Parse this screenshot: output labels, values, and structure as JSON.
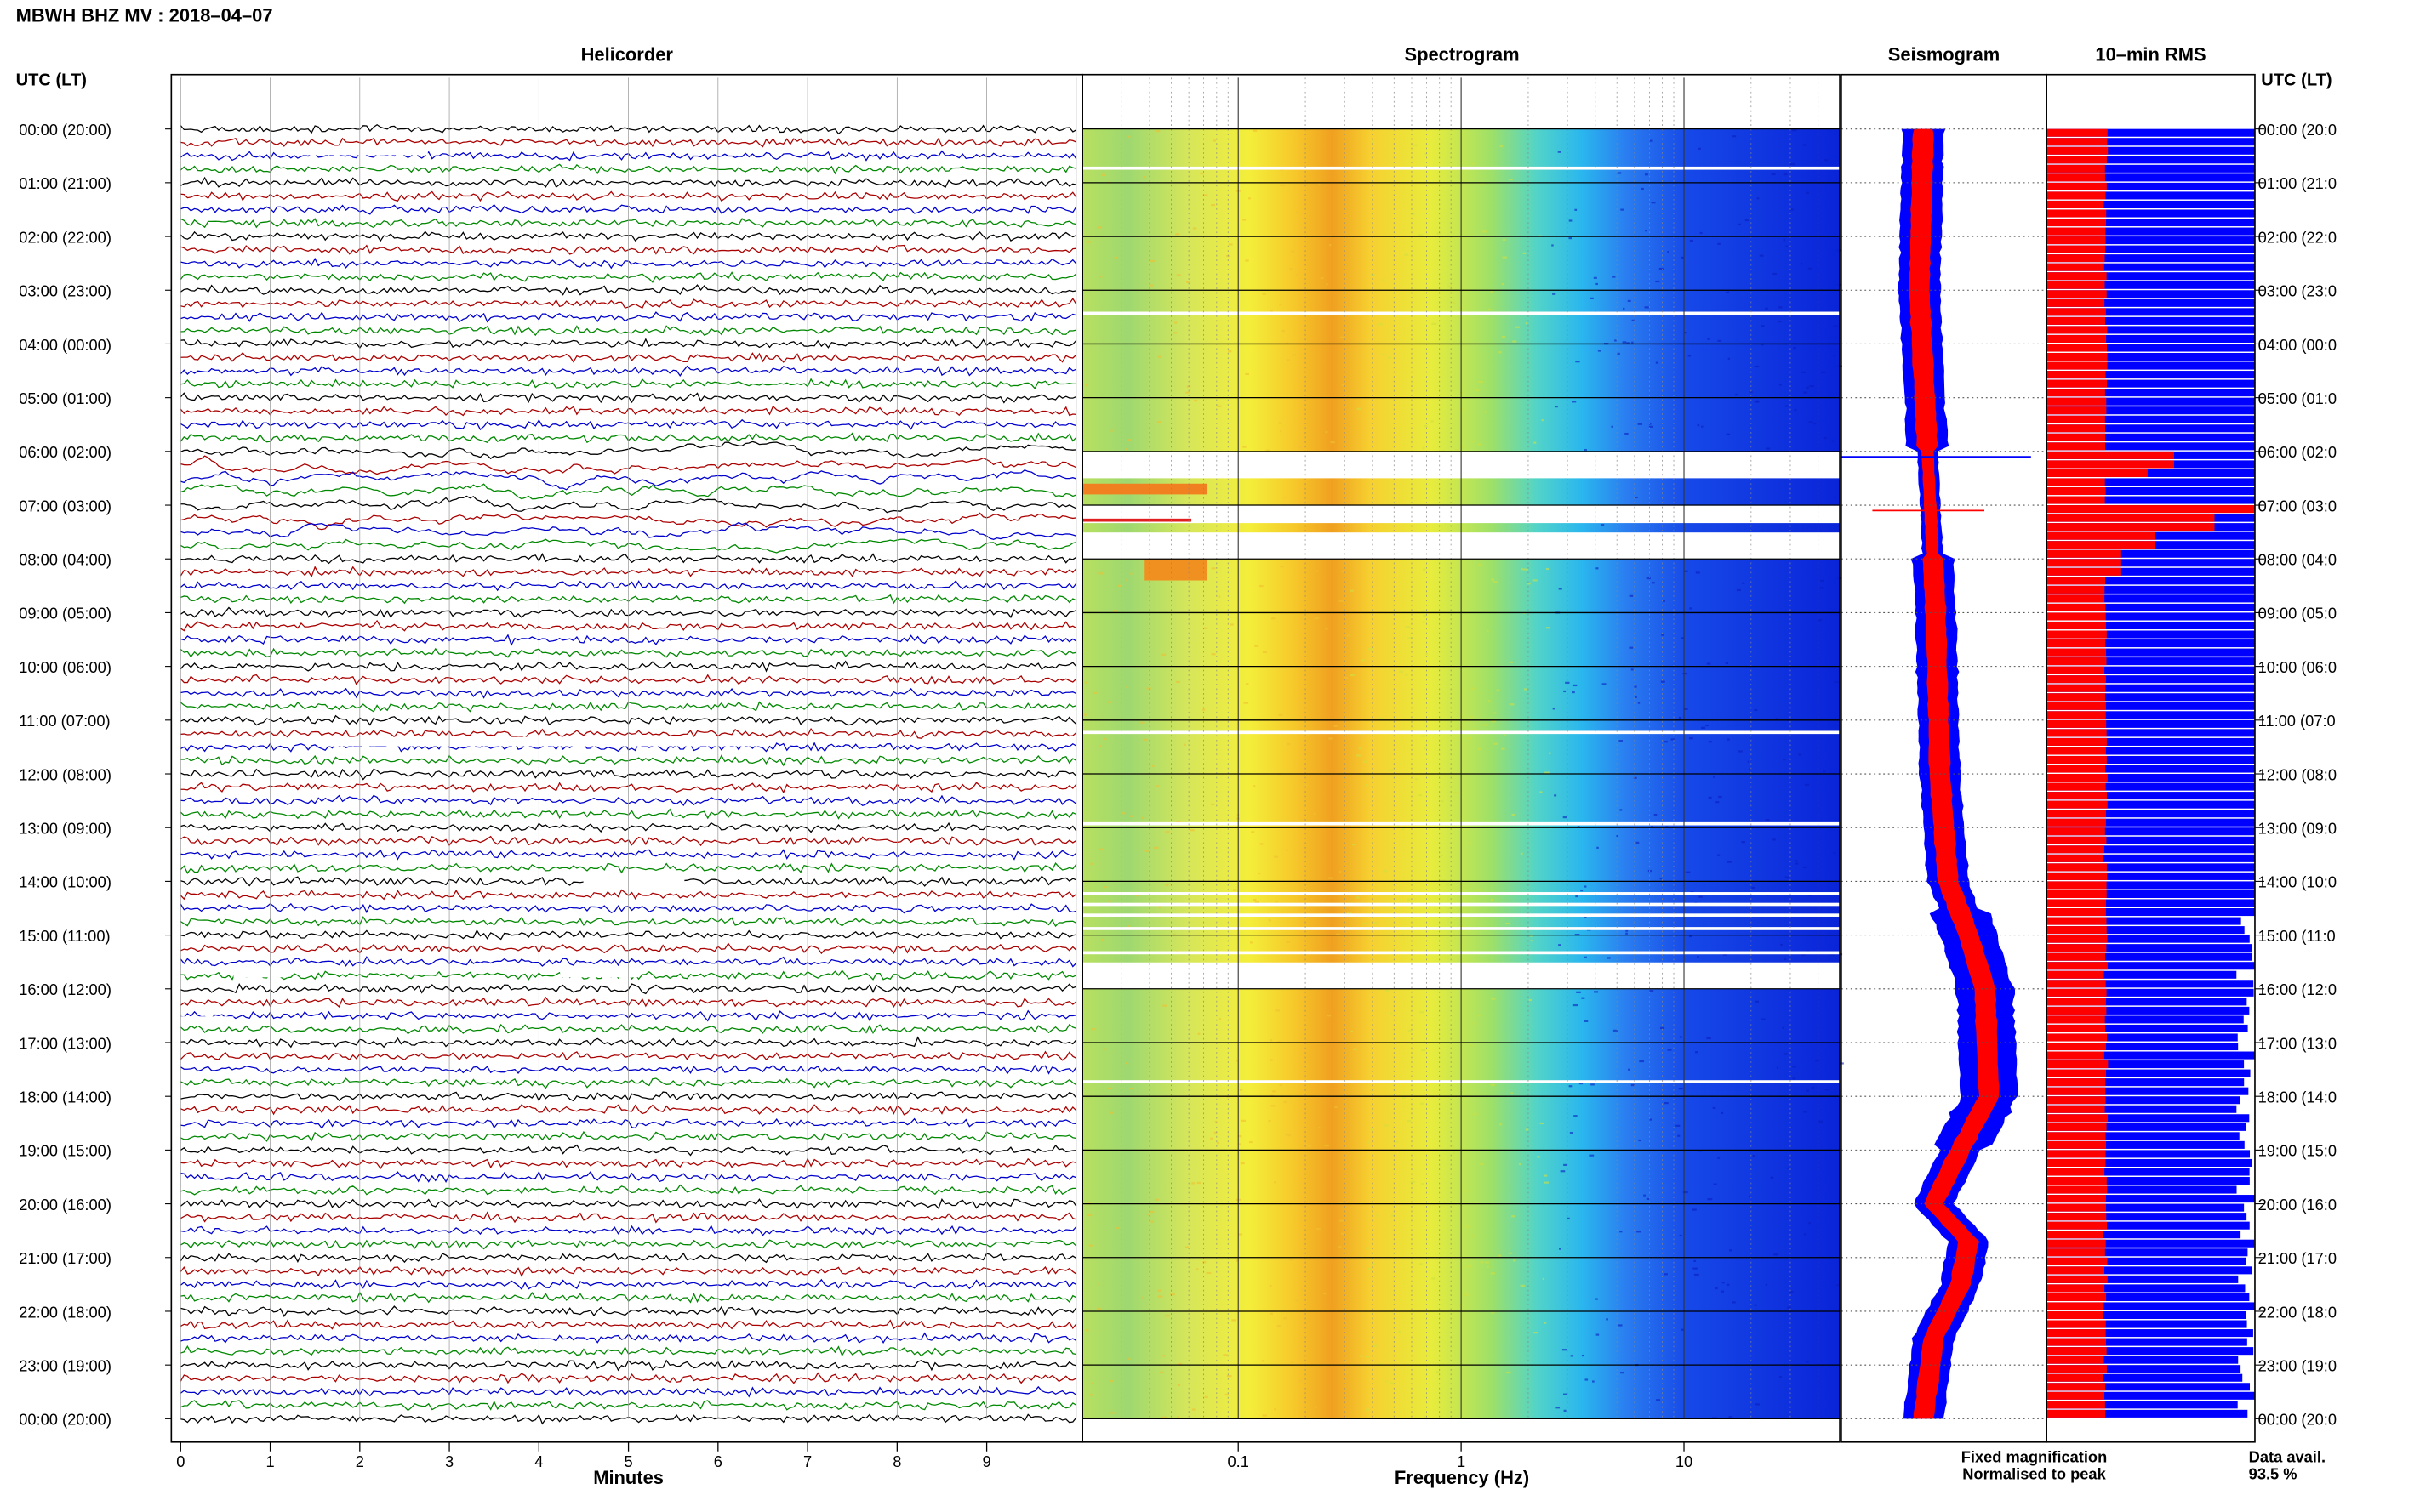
{
  "chart_data": {
    "type": "heatmap",
    "title": "MBWH BHZ MV : 2018–04–07",
    "panels": [
      "Helicorder",
      "Spectrogram",
      "Seismogram",
      "10–min RMS"
    ],
    "ylabel": "UTC (LT)",
    "time_ticks_utc": [
      "00:00",
      "01:00",
      "02:00",
      "03:00",
      "04:00",
      "05:00",
      "06:00",
      "07:00",
      "08:00",
      "09:00",
      "10:00",
      "11:00",
      "12:00",
      "13:00",
      "14:00",
      "15:00",
      "16:00",
      "17:00",
      "18:00",
      "19:00",
      "20:00",
      "21:00",
      "22:00",
      "23:00",
      "00:00"
    ],
    "time_ticks_lt": [
      "20:00",
      "21:00",
      "22:00",
      "23:00",
      "00:00",
      "01:00",
      "02:00",
      "03:00",
      "04:00",
      "05:00",
      "06:00",
      "07:00",
      "08:00",
      "09:00",
      "10:00",
      "11:00",
      "12:00",
      "13:00",
      "14:00",
      "15:00",
      "16:00",
      "17:00",
      "18:00",
      "19:00",
      "20:00"
    ],
    "left_labels": [
      "00:00 (20:00)",
      "01:00 (21:00)",
      "02:00 (22:00)",
      "03:00 (23:00)",
      "04:00 (00:00)",
      "05:00 (01:00)",
      "06:00 (02:00)",
      "07:00 (03:00)",
      "08:00 (04:00)",
      "09:00 (05:00)",
      "10:00 (06:00)",
      "11:00 (07:00)",
      "12:00 (08:00)",
      "13:00 (09:00)",
      "14:00 (10:00)",
      "15:00 (11:00)",
      "16:00 (12:00)",
      "17:00 (13:00)",
      "18:00 (14:00)",
      "19:00 (15:00)",
      "20:00 (16:00)",
      "21:00 (17:00)",
      "22:00 (18:00)",
      "23:00 (19:00)",
      "00:00 (20:00)"
    ],
    "right_labels": [
      "00:00 (20:0",
      "01:00 (21:0",
      "02:00 (22:0",
      "03:00 (23:0",
      "04:00 (00:0",
      "05:00 (01:0",
      "06:00 (02:0",
      "07:00 (03:0",
      "08:00 (04:0",
      "09:00 (05:0",
      "10:00 (06:0",
      "11:00 (07:0",
      "12:00 (08:0",
      "13:00 (09:0",
      "14:00 (10:0",
      "15:00 (11:0",
      "16:00 (12:0",
      "17:00 (13:0",
      "18:00 (14:0",
      "19:00 (15:0",
      "20:00 (16:0",
      "21:00 (17:0",
      "22:00 (18:0",
      "23:00 (19:0",
      "00:00 (20:0"
    ],
    "helicorder": {
      "xlabel": "Minutes",
      "x_ticks": [
        "0",
        "1",
        "2",
        "3",
        "4",
        "5",
        "6",
        "7",
        "8",
        "9"
      ],
      "xlim": [
        0,
        10
      ],
      "trace_colors": [
        "#000000",
        "#aa0000",
        "#0000cc",
        "#008800"
      ]
    },
    "spectrogram": {
      "xlabel": "Frequency (Hz)",
      "x_scale": "log",
      "xlim": [
        0.02,
        50
      ],
      "x_ticks": [
        "0.1",
        "1",
        "10"
      ],
      "x_tick_values": [
        0.1,
        1,
        10
      ],
      "data_gaps_utc": [
        [
          6.0,
          6.5
        ],
        [
          6.85,
          7.3
        ],
        [
          7.35,
          8.0
        ],
        [
          15.5,
          16.0
        ]
      ]
    },
    "seismogram": {
      "legend": [
        "Fixed magnification",
        "Normalised to peak"
      ],
      "colors": [
        "#0000ff",
        "#ff0000"
      ]
    },
    "rms": {
      "colors": [
        "#0000ff",
        "#ff0000"
      ],
      "spike_hours_utc": [
        6.0,
        7.0,
        7.3
      ]
    },
    "data_availability": {
      "label": "Data avail.",
      "value": "93.5 %"
    }
  }
}
